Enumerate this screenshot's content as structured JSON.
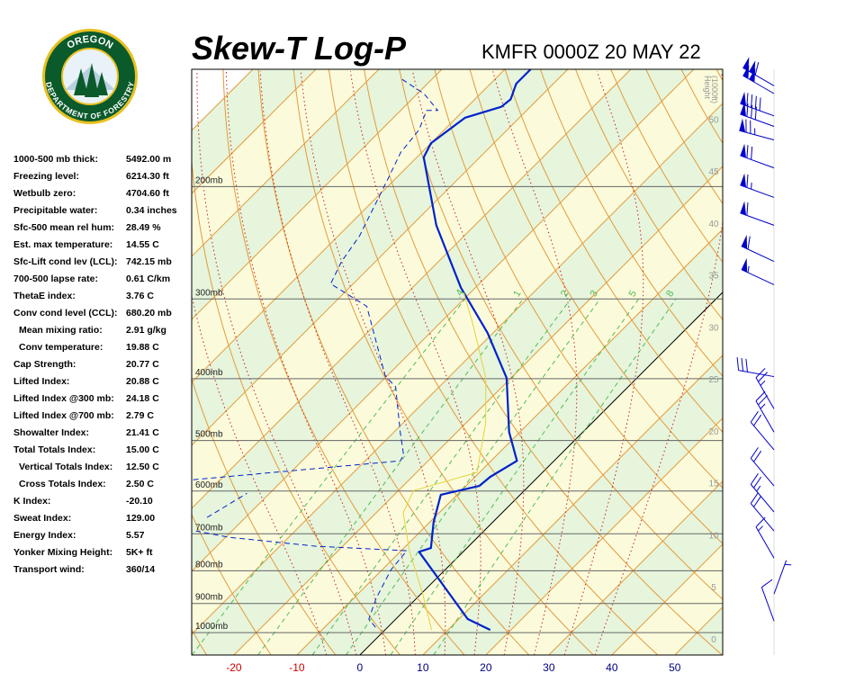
{
  "header": {
    "title": "Skew-T Log-P",
    "station": "KMFR 0000Z 20 MAY 22"
  },
  "logo": {
    "top": "OREGON",
    "bottom": "DEPARTMENT OF FORESTRY"
  },
  "indices": [
    {
      "label": "1000-500 mb thick:",
      "value": "5492.00 m"
    },
    {
      "label": "Freezing level:",
      "value": "6214.30 ft"
    },
    {
      "label": "Wetbulb zero:",
      "value": "4704.60 ft"
    },
    {
      "label": "Precipitable water:",
      "value": "0.34 inches"
    },
    {
      "label": "Sfc-500 mean rel hum:",
      "value": "28.49 %"
    },
    {
      "label": "Est. max temperature:",
      "value": "14.55 C"
    },
    {
      "label": "Sfc-Lift cond lev (LCL):",
      "value": "742.15 mb"
    },
    {
      "label": "700-500 lapse rate:",
      "value": "0.61 C/km"
    },
    {
      "label": "ThetaE index:",
      "value": "3.76 C"
    },
    {
      "label": "Conv cond level (CCL):",
      "value": "680.20 mb"
    },
    {
      "label": "Mean mixing ratio:",
      "value": "2.91 g/kg",
      "sub": true
    },
    {
      "label": "Conv temperature:",
      "value": "19.88 C",
      "sub": true
    },
    {
      "label": "Cap Strength:",
      "value": "20.77 C"
    },
    {
      "label": "Lifted Index:",
      "value": "20.88 C"
    },
    {
      "label": "Lifted Index @300 mb:",
      "value": "24.18 C"
    },
    {
      "label": "Lifted Index @700 mb:",
      "value": "2.79 C"
    },
    {
      "label": "Showalter Index:",
      "value": "21.41 C"
    },
    {
      "label": "Total Totals Index:",
      "value": "15.00 C"
    },
    {
      "label": "Vertical Totals Index:",
      "value": "12.50 C",
      "sub": true
    },
    {
      "label": "Cross Totals Index:",
      "value": "2.50 C",
      "sub": true
    },
    {
      "label": "K Index:",
      "value": "-20.10"
    },
    {
      "label": "Sweat Index:",
      "value": "129.00"
    },
    {
      "label": "Energy Index:",
      "value": "5.57"
    },
    {
      "label": "Yonker Mixing Height:",
      "value": "5K+ ft"
    },
    {
      "label": "Transport wind:",
      "value": "360/14"
    }
  ],
  "chart_data": {
    "type": "skewt",
    "xlim": [
      -26.7,
      57.6
    ],
    "xticks": [
      -20,
      -10,
      0,
      10,
      20,
      30,
      40,
      50
    ],
    "xtick_colors": {
      "negative": "#cc0000",
      "other": "#000080"
    },
    "ylim": [
      1084,
      131
    ],
    "log_y": true,
    "yticks": [
      {
        "value": 1000,
        "label": "1000mb"
      },
      {
        "value": 900,
        "label": "900mb"
      },
      {
        "value": 800,
        "label": "800mb"
      },
      {
        "value": 700,
        "label": "700mb"
      },
      {
        "value": 600,
        "label": "600mb"
      },
      {
        "value": 500,
        "label": "500mb"
      },
      {
        "value": 400,
        "label": "400mb"
      },
      {
        "value": 300,
        "label": "300mb"
      },
      {
        "value": 200,
        "label": "200mb"
      }
    ],
    "isotherms": [
      -110,
      -100,
      -90,
      -80,
      -70,
      -60,
      -50,
      -40,
      -30,
      -20,
      -10,
      0,
      10,
      20,
      30,
      40,
      50
    ],
    "band_colors": [
      "#e6f5dc",
      "#fbfbdc"
    ],
    "isotherm_color": "#e59a3a",
    "highlight_isotherm": 0,
    "highlight_color": "#000000",
    "dry_adiabats": [
      -30,
      -20,
      -10,
      0,
      10,
      20,
      30,
      40,
      50,
      60,
      70,
      80,
      90,
      100,
      110,
      120,
      130,
      140,
      150,
      160,
      170
    ],
    "dry_color": "#e59a3a",
    "moist_adiabats": [
      -10,
      -5,
      0,
      5,
      10,
      15,
      20,
      25,
      30,
      35
    ],
    "moist_color": "#cc2222",
    "mixing_ratios": [
      {
        "value": 0.4,
        "label": ".4"
      },
      1,
      2,
      3,
      5,
      8
    ],
    "mixing_color": "#55bb55",
    "height_axis": {
      "label": [
        "Height",
        "(1000ft)"
      ],
      "lim": [
        -1.56,
        54.8
      ],
      "ticks": [
        0,
        5,
        10,
        15,
        20,
        25,
        30,
        35,
        40,
        45,
        50
      ]
    },
    "series": [
      {
        "color": "#0022cc",
        "width": 2.2,
        "dashed": false,
        "pressure": [
          990,
          952,
          747,
          737,
          671,
          608,
          599,
          589,
          570,
          538,
          485,
          399,
          339,
          288,
          230,
          180,
          171,
          156,
          150,
          146,
          138,
          131
        ],
        "values": [
          16.7,
          11.4,
          -7.0,
          -5.7,
          -9.4,
          -12.6,
          -10.4,
          -7.9,
          -7.6,
          -5.9,
          -11.7,
          -20.7,
          -30.9,
          -42.3,
          -56.1,
          -68.9,
          -70.0,
          -68.6,
          -64.6,
          -64.3,
          -65.9,
          -65.9
        ]
      },
      {
        "color": "#0022cc",
        "width": 1,
        "dashed": true,
        "pressure": [
          981,
          952,
          884,
          797,
          744,
          732,
          709,
          693,
          null,
          660,
          605,
          null,
          576,
          538,
          526,
          485,
          412,
          396,
          308,
          284,
          262,
          239,
          195,
          177,
          163,
          152,
          152,
          143,
          135
        ],
        "values": [
          -1.9,
          -4.3,
          -6.4,
          -8.6,
          -9.1,
          -24.4,
          -39.4,
          -45.7,
          null,
          -46.1,
          -43.6,
          null,
          -54.3,
          -24.4,
          -24.9,
          -29.0,
          -36.9,
          -40.3,
          -54.3,
          -63.6,
          -65.4,
          -66.6,
          -71.1,
          -73.3,
          -74.0,
          -75.9,
          -74.1,
          -79.0,
          -85.4
        ]
      },
      {
        "color": "#e6d23a",
        "width": 1,
        "dashed": false,
        "pressure": [
          990,
          870,
          744,
          649,
          599,
          561,
          469,
          399,
          328,
          293
        ],
        "values": [
          7.4,
          0.3,
          -8.7,
          -15.7,
          -17.6,
          -10.4,
          -16.9,
          -24.0,
          -34.7,
          -41.1
        ]
      }
    ],
    "wind_color": "#0000cc",
    "winds": [
      {
        "pressure": 139,
        "direction": 300,
        "speed": 110
      },
      {
        "pressure": 143,
        "direction": 300,
        "speed": 100
      },
      {
        "pressure": 155,
        "direction": 290,
        "speed": 90
      },
      {
        "pressure": 161,
        "direction": 290,
        "speed": 80
      },
      {
        "pressure": 169,
        "direction": 285,
        "speed": 75
      },
      {
        "pressure": 187,
        "direction": 290,
        "speed": 70
      },
      {
        "pressure": 208,
        "direction": 290,
        "speed": 65
      },
      {
        "pressure": 230,
        "direction": 290,
        "speed": 60
      },
      {
        "pressure": 262,
        "direction": 295,
        "speed": 60
      },
      {
        "pressure": 285,
        "direction": 295,
        "speed": 55
      },
      {
        "pressure": 397,
        "direction": 280,
        "speed": 30
      },
      {
        "pressure": 446,
        "direction": 330,
        "speed": 25
      },
      {
        "pressure": 485,
        "direction": 330,
        "speed": 25
      },
      {
        "pressure": 517,
        "direction": 320,
        "speed": 20
      },
      {
        "pressure": 589,
        "direction": 320,
        "speed": 20
      },
      {
        "pressure": 647,
        "direction": 320,
        "speed": 25
      },
      {
        "pressure": 693,
        "direction": 320,
        "speed": 20
      },
      {
        "pressure": 764,
        "direction": 330,
        "speed": 15
      },
      {
        "pressure": 870,
        "direction": 20,
        "speed": 5
      },
      {
        "pressure": 959,
        "direction": 340,
        "speed": 10
      }
    ]
  }
}
